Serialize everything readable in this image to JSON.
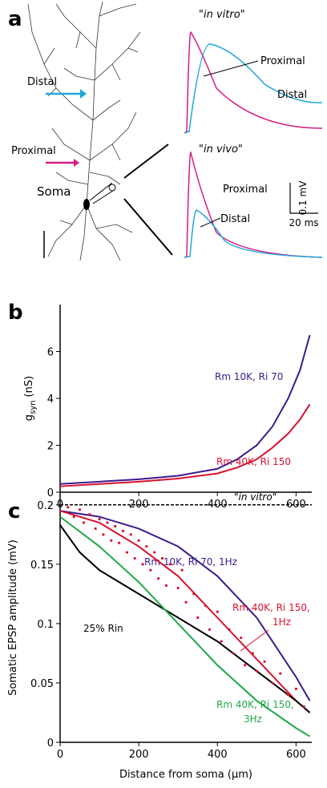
{
  "panel_a": {
    "label": "a",
    "in_vitro": "\"in vitro\"",
    "in_vivo": "\"in vivo\"",
    "vitro_proximal": "Proximal",
    "vitro_distal": "Distal",
    "vivo_proximal": "Proximal",
    "vivo_distal": "Distal",
    "neuron_distal": "Distal",
    "neuron_proximal": "Proximal",
    "soma": "Soma",
    "scale_v": "0.1 mV",
    "scale_t": "20 ms"
  },
  "chart_data": [
    {
      "type": "line",
      "panel": "b",
      "ylabel": [
        "g",
        "syn",
        "(nS)"
      ],
      "xlim": [
        0,
        640
      ],
      "xticks": [
        0,
        200,
        400,
        600
      ],
      "ylim": [
        0,
        8
      ],
      "yticks": [
        0,
        2,
        4,
        6
      ],
      "series": [
        {
          "name": "Rm 10K, Ri 70",
          "color": "#3d1a8c",
          "x": [
            0,
            100,
            200,
            300,
            400,
            450,
            500,
            540,
            580,
            610,
            635
          ],
          "values": [
            0.35,
            0.45,
            0.55,
            0.7,
            1.0,
            1.4,
            2.0,
            2.8,
            4.0,
            5.2,
            6.7
          ]
        },
        {
          "name": "Rm 40K, Ri 150",
          "color": "#d8122e",
          "x": [
            0,
            100,
            200,
            300,
            400,
            450,
            500,
            540,
            580,
            610,
            635
          ],
          "values": [
            0.25,
            0.35,
            0.45,
            0.58,
            0.8,
            1.05,
            1.4,
            1.9,
            2.5,
            3.1,
            3.75
          ]
        }
      ]
    },
    {
      "type": "line",
      "panel": "c",
      "ylabel": "Somatic EPSP amplitude (mV)",
      "xlabel": "Distance from soma (μm)",
      "xlim": [
        0,
        640
      ],
      "xticks": [
        0,
        200,
        400,
        600
      ],
      "ylim": [
        0,
        0.21
      ],
      "yticks": [
        0,
        0.05,
        0.1,
        0.15,
        0.2
      ],
      "series": [
        {
          "name": "\"in vitro\"",
          "color": "#000000",
          "dashed": true,
          "x": [
            0,
            640
          ],
          "values": [
            0.2,
            0.2
          ]
        },
        {
          "name": "Rm 10K, Ri 70, 1Hz",
          "color": "#3d1a8c",
          "x": [
            0,
            100,
            200,
            300,
            400,
            500,
            600,
            635
          ],
          "values": [
            0.195,
            0.19,
            0.18,
            0.165,
            0.14,
            0.105,
            0.055,
            0.035
          ]
        },
        {
          "name": [
            "Rm 40K, Ri 150,",
            "1Hz"
          ],
          "color": "#d8122e",
          "x": [
            0,
            100,
            200,
            300,
            400,
            500,
            600,
            635
          ],
          "values": [
            0.195,
            0.185,
            0.165,
            0.14,
            0.105,
            0.07,
            0.035,
            0.025
          ]
        },
        {
          "name": "25% Rin",
          "color": "#000000",
          "x": [
            0,
            50,
            100,
            200,
            300,
            400,
            500,
            600,
            635
          ],
          "values": [
            0.183,
            0.16,
            0.145,
            0.125,
            0.105,
            0.085,
            0.06,
            0.035,
            0.025
          ]
        },
        {
          "name": [
            "Rm 40K, Ri 150,",
            "3Hz"
          ],
          "color": "#1fa84a",
          "x": [
            0,
            100,
            200,
            300,
            400,
            500,
            600,
            635
          ],
          "values": [
            0.19,
            0.165,
            0.135,
            0.1,
            0.065,
            0.035,
            0.012,
            0.005
          ]
        },
        {
          "color": "#d8122e",
          "dots": true,
          "x": [
            20,
            35,
            50,
            60,
            75,
            90,
            100,
            110,
            120,
            130,
            140,
            150,
            160,
            170,
            180,
            190,
            200,
            210,
            220,
            230,
            240,
            250,
            260,
            270,
            280,
            300,
            310,
            320,
            340,
            350,
            370,
            380,
            400,
            410,
            430,
            440,
            460,
            470,
            490,
            500,
            520,
            540,
            560,
            580,
            600,
            620
          ],
          "values": [
            0.198,
            0.19,
            0.196,
            0.185,
            0.192,
            0.18,
            0.188,
            0.175,
            0.185,
            0.17,
            0.182,
            0.168,
            0.178,
            0.16,
            0.175,
            0.155,
            0.17,
            0.15,
            0.165,
            0.145,
            0.16,
            0.138,
            0.155,
            0.132,
            0.15,
            0.13,
            0.145,
            0.118,
            0.125,
            0.105,
            0.115,
            0.095,
            0.11,
            0.085,
            0.095,
            0.075,
            0.088,
            0.065,
            0.075,
            0.06,
            0.068,
            0.05,
            0.058,
            0.04,
            0.045,
            0.03
          ]
        }
      ]
    }
  ]
}
